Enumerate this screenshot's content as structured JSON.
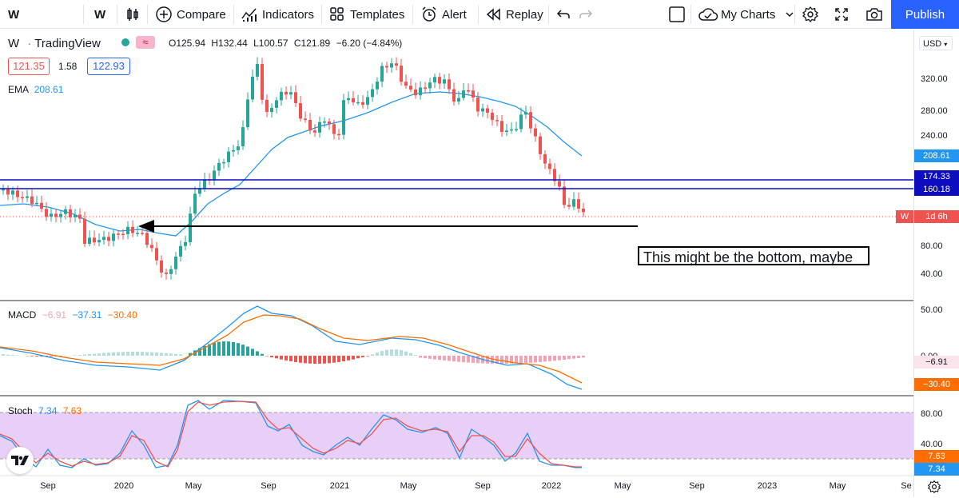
{
  "toolbar": {
    "symbol": "W",
    "interval": "W",
    "compare": "Compare",
    "indicators": "Indicators",
    "templates": "Templates",
    "alert": "Alert",
    "replay": "Replay",
    "my_charts": "My Charts",
    "publish": "Publish"
  },
  "legend": {
    "symbol": "W",
    "dot": "·",
    "source": "TradingView",
    "ohlc_o": "O125.94",
    "ohlc_h": "H132.44",
    "ohlc_l": "L100.57",
    "ohlc_c": "C121.89",
    "ohlc_change": "−6.20 (−4.84%)",
    "bid": "121.35",
    "spread": "1.58",
    "ask": "122.93",
    "ema_label": "EMA",
    "ema_value": "208.61"
  },
  "currency": "USD",
  "price_axis": [
    "320.00",
    "280.00",
    "240.00",
    "80.00",
    "40.00"
  ],
  "price_badges": {
    "ema": "208.61",
    "hline1": "174.33",
    "hline2": "160.18",
    "last_symbol": "W",
    "countdown": "1d 6h"
  },
  "annotation": "This might be the bottom, maybe",
  "macd": {
    "label": "MACD",
    "hist": "−6.91",
    "macd": "−37.31",
    "signal": "−30.40",
    "axis": [
      "50.00",
      "0.00"
    ],
    "badge_hist": "−6.91",
    "badge_signal": "−30.40"
  },
  "stoch": {
    "label": "Stoch",
    "k": "7.34",
    "d": "7.63",
    "axis": [
      "80.00",
      "40.00"
    ],
    "badge_d": "7.63",
    "badge_k": "7.34"
  },
  "time_axis": [
    "Sep",
    "2020",
    "May",
    "Sep",
    "2021",
    "May",
    "Sep",
    "2022",
    "May",
    "Sep",
    "2023",
    "May",
    "Se"
  ],
  "colors": {
    "up": "#26a69a",
    "down": "#ef5350",
    "ema": "#2196f3",
    "hline": "#0d0dbf",
    "macd": "#2196f3",
    "signal": "#ff6d00",
    "stoch_k": "#2196f3",
    "stoch_d": "#ef5350",
    "stoch_band": "#e8cff8",
    "accent": "#2962ff"
  }
}
